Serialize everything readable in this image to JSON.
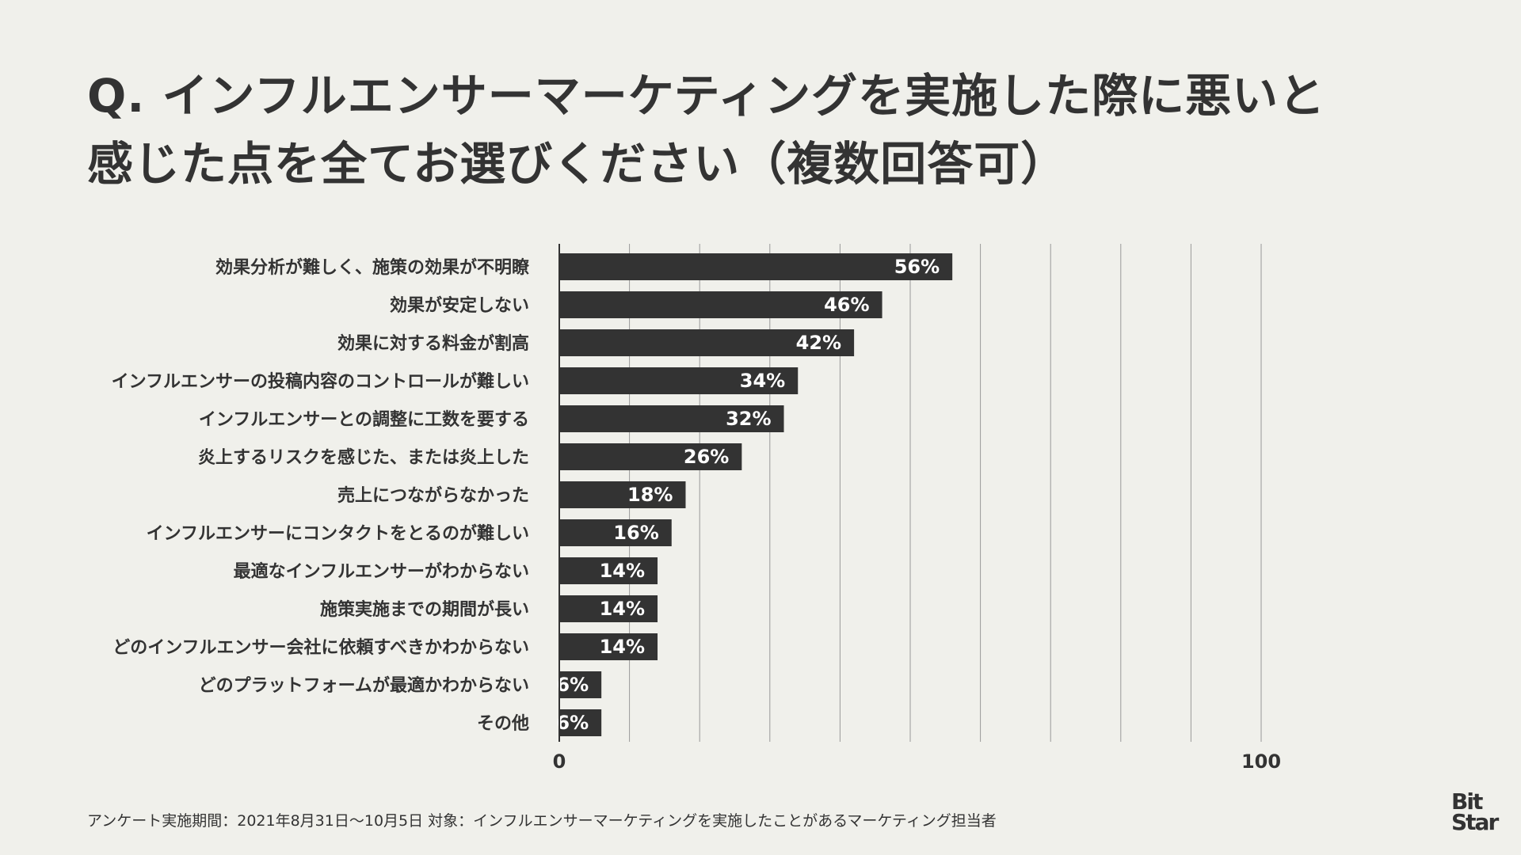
{
  "title_lines": [
    "Q. インフルエンサーマーケティングを実施した際に悪いと",
    "感じた点を全てお選びください（複数回答可）"
  ],
  "colors": {
    "background": "#f0f0eb",
    "bar": "#333333",
    "text": "#333333",
    "value_text": "#ffffff",
    "grid": "#999999"
  },
  "chart_data": {
    "type": "bar",
    "orientation": "horizontal",
    "categories": [
      "効果分析が難しく、施策の効果が不明瞭",
      "効果が安定しない",
      "効果に対する料金が割高",
      "インフルエンサーの投稿内容のコントロールが難しい",
      "インフルエンサーとの調整に工数を要する",
      "炎上するリスクを感じた、または炎上した",
      "売上につながらなかった",
      "インフルエンサーにコンタクトをとるのが難しい",
      "最適なインフルエンサーがわからない",
      "施策実施までの期間が長い",
      "どのインフルエンサー会社に依頼すべきかわからない",
      "どのプラットフォームが最適かわからない",
      "その他"
    ],
    "values": [
      56,
      46,
      42,
      34,
      32,
      26,
      18,
      16,
      14,
      14,
      14,
      6,
      6
    ],
    "value_labels": [
      "56%",
      "46%",
      "42%",
      "34%",
      "32%",
      "26%",
      "18%",
      "16%",
      "14%",
      "14%",
      "14%",
      "6%",
      "6%"
    ],
    "xlim": [
      0,
      100
    ],
    "x_ticks": [
      "0",
      "100"
    ],
    "grid": true
  },
  "footnote": "アンケート実施期間：2021年8月31日〜10月5日  対象：インフルエンサーマーケティングを実施したことがあるマーケティング担当者",
  "logo_text": [
    "Bit",
    "Star"
  ]
}
